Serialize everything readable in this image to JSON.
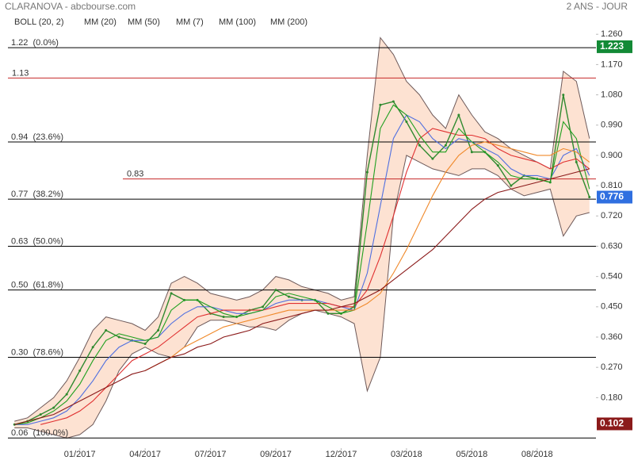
{
  "chart_data": {
    "type": "line",
    "title": "CLARANOVA - abcbourse.com",
    "subtitle": "2 ANS - JOUR",
    "categories": [
      null,
      null,
      null,
      null,
      null,
      "01/2017",
      null,
      null,
      null,
      null,
      "04/2017",
      null,
      null,
      null,
      null,
      "07/2017",
      null,
      null,
      null,
      null,
      "09/2017",
      null,
      null,
      null,
      null,
      "12/2017",
      null,
      null,
      null,
      null,
      "03/2018",
      null,
      null,
      null,
      null,
      "05/2018",
      null,
      null,
      null,
      null,
      "08/2018",
      null,
      null,
      null,
      null
    ],
    "ylim": [
      0.03,
      1.31
    ],
    "yticks": [
      {
        "value": 0.18,
        "label": "0.180"
      },
      {
        "value": 0.27,
        "label": "0.270"
      },
      {
        "value": 0.36,
        "label": "0.360"
      },
      {
        "value": 0.45,
        "label": "0.450"
      },
      {
        "value": 0.54,
        "label": "0.540"
      },
      {
        "value": 0.63,
        "label": "0.630"
      },
      {
        "value": 0.72,
        "label": "0.720"
      },
      {
        "value": 0.81,
        "label": "0.810"
      },
      {
        "value": 0.9,
        "label": "0.900"
      },
      {
        "value": 0.99,
        "label": "0.990"
      },
      {
        "value": 1.08,
        "label": "1.080"
      },
      {
        "value": 1.17,
        "label": "1.170"
      },
      {
        "value": 1.26,
        "label": "1.260"
      }
    ],
    "price": {
      "color": "#2f8a2f",
      "values": [
        0.1,
        0.11,
        0.13,
        0.15,
        0.19,
        0.26,
        0.33,
        0.38,
        0.36,
        0.35,
        0.34,
        0.38,
        0.49,
        0.47,
        0.47,
        0.43,
        0.42,
        0.42,
        0.44,
        0.45,
        0.5,
        0.48,
        0.47,
        0.47,
        0.43,
        0.43,
        0.45,
        0.85,
        1.05,
        1.06,
        1.0,
        0.93,
        0.89,
        0.93,
        1.02,
        0.91,
        0.91,
        0.87,
        0.81,
        0.84,
        0.83,
        0.82,
        1.08,
        0.88,
        0.776
      ]
    },
    "bollinger": {
      "name": "BOLL (20, 2)",
      "color": "#6e5a5a",
      "fill": "#fde2d2",
      "upper": [
        0.11,
        0.12,
        0.15,
        0.18,
        0.23,
        0.3,
        0.38,
        0.42,
        0.41,
        0.4,
        0.38,
        0.42,
        0.52,
        0.54,
        0.52,
        0.49,
        0.48,
        0.47,
        0.48,
        0.5,
        0.54,
        0.53,
        0.51,
        0.5,
        0.49,
        0.47,
        0.48,
        0.9,
        1.25,
        1.2,
        1.12,
        1.08,
        1.02,
        0.98,
        1.08,
        1.02,
        0.97,
        0.95,
        0.92,
        0.9,
        0.88,
        0.86,
        1.15,
        1.12,
        0.95
      ],
      "lower": [
        0.09,
        0.09,
        0.08,
        0.07,
        0.06,
        0.07,
        0.1,
        0.17,
        0.26,
        0.31,
        0.33,
        0.31,
        0.3,
        0.33,
        0.39,
        0.41,
        0.41,
        0.4,
        0.39,
        0.39,
        0.38,
        0.41,
        0.43,
        0.44,
        0.43,
        0.42,
        0.4,
        0.2,
        0.3,
        0.72,
        0.9,
        0.88,
        0.86,
        0.85,
        0.84,
        0.86,
        0.86,
        0.84,
        0.8,
        0.78,
        0.79,
        0.8,
        0.66,
        0.72,
        0.73
      ]
    },
    "series": [
      {
        "name": "MM (20)",
        "color": "#4f6fe0",
        "values": [
          0.1,
          0.1,
          0.11,
          0.12,
          0.14,
          0.18,
          0.23,
          0.29,
          0.33,
          0.35,
          0.35,
          0.36,
          0.4,
          0.43,
          0.45,
          0.45,
          0.44,
          0.43,
          0.43,
          0.44,
          0.46,
          0.47,
          0.47,
          0.47,
          0.46,
          0.45,
          0.44,
          0.55,
          0.75,
          0.95,
          1.02,
          1.0,
          0.95,
          0.92,
          0.95,
          0.94,
          0.92,
          0.9,
          0.86,
          0.84,
          0.84,
          0.83,
          0.9,
          0.92,
          0.84
        ]
      },
      {
        "name": "MM (50)",
        "color": "#e03030",
        "values": [
          null,
          null,
          0.1,
          0.11,
          0.12,
          0.14,
          0.17,
          0.21,
          0.25,
          0.29,
          0.31,
          0.33,
          0.36,
          0.39,
          0.42,
          0.43,
          0.44,
          0.44,
          0.44,
          0.44,
          0.45,
          0.46,
          0.46,
          0.46,
          0.46,
          0.45,
          0.45,
          0.5,
          0.6,
          0.72,
          0.85,
          0.95,
          0.98,
          0.97,
          0.96,
          0.96,
          0.95,
          0.92,
          0.9,
          0.89,
          0.88,
          0.86,
          0.88,
          0.89,
          0.86
        ]
      },
      {
        "name": "MM (7)",
        "color": "#1fa01f",
        "values": [
          0.1,
          0.105,
          0.12,
          0.14,
          0.17,
          0.22,
          0.29,
          0.35,
          0.37,
          0.36,
          0.35,
          0.36,
          0.44,
          0.47,
          0.47,
          0.45,
          0.43,
          0.42,
          0.43,
          0.44,
          0.48,
          0.49,
          0.48,
          0.47,
          0.45,
          0.43,
          0.44,
          0.7,
          0.98,
          1.05,
          1.02,
          0.96,
          0.91,
          0.91,
          0.98,
          0.94,
          0.91,
          0.88,
          0.84,
          0.83,
          0.83,
          0.82,
          1.0,
          0.95,
          0.8
        ]
      },
      {
        "name": "MM (100)",
        "color": "#f0892a",
        "values": [
          null,
          null,
          null,
          null,
          null,
          null,
          null,
          null,
          null,
          null,
          0.26,
          0.28,
          0.3,
          0.33,
          0.35,
          0.37,
          0.39,
          0.4,
          0.41,
          0.42,
          0.43,
          0.44,
          0.44,
          0.44,
          0.44,
          0.44,
          0.44,
          0.46,
          0.49,
          0.55,
          0.62,
          0.7,
          0.78,
          0.85,
          0.9,
          0.93,
          0.94,
          0.93,
          0.92,
          0.91,
          0.9,
          0.9,
          0.92,
          0.91,
          0.88
        ]
      },
      {
        "name": "MM (200)",
        "color": "#8b1a1a",
        "values": [
          0.1,
          0.11,
          0.12,
          0.13,
          0.15,
          0.17,
          0.19,
          0.21,
          0.23,
          0.25,
          0.26,
          0.28,
          0.3,
          0.31,
          0.33,
          0.34,
          0.36,
          0.37,
          0.38,
          0.4,
          0.41,
          0.42,
          0.43,
          0.44,
          0.44,
          0.45,
          0.46,
          0.48,
          0.5,
          0.53,
          0.56,
          0.59,
          0.62,
          0.66,
          0.7,
          0.74,
          0.77,
          0.79,
          0.8,
          0.81,
          0.82,
          0.83,
          0.84,
          0.85,
          0.86
        ]
      }
    ],
    "fib_levels": [
      {
        "value": 1.22,
        "label": "1.22  (0.0%)"
      },
      {
        "value": 0.94,
        "label": "0.94  (23.6%)"
      },
      {
        "value": 0.77,
        "label": "0.77  (38.2%)"
      },
      {
        "value": 0.63,
        "label": "0.63  (50.0%)"
      },
      {
        "value": 0.5,
        "label": "0.50  (61.8%)"
      },
      {
        "value": 0.3,
        "label": "0.30  (78.6%)"
      },
      {
        "value": 0.06,
        "label": "0.06  (100.0%)"
      }
    ],
    "resistance_levels": [
      {
        "value": 1.13,
        "label": "1.13",
        "color": "#c62828"
      },
      {
        "value": 0.83,
        "label": "0.83",
        "color": "#c62828"
      }
    ],
    "price_labels": [
      {
        "value": 1.223,
        "label": "1.223",
        "color": "#138a36"
      },
      {
        "value": 0.776,
        "label": "0.776",
        "color": "#2f6fe0"
      },
      {
        "value": 0.102,
        "label": "0.102",
        "color": "#8b1a1a"
      }
    ]
  }
}
